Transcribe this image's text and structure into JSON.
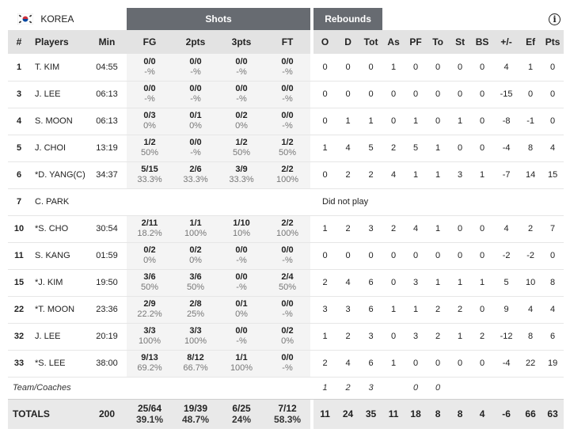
{
  "team": {
    "name": "KOREA"
  },
  "groups": {
    "shots": "Shots",
    "rebounds": "Rebounds"
  },
  "columns": {
    "num": "#",
    "players": "Players",
    "min": "Min",
    "fg": "FG",
    "p2": "2pts",
    "p3": "3pts",
    "ft": "FT",
    "o": "O",
    "d": "D",
    "tot": "Tot",
    "as": "As",
    "pf": "PF",
    "to": "To",
    "st": "St",
    "bs": "BS",
    "pm": "+/-",
    "ef": "Ef",
    "pts": "Pts"
  },
  "players": [
    {
      "num": "1",
      "name": "T. KIM",
      "min": "04:55",
      "fg": "0/0",
      "fgp": "-%",
      "p2": "0/0",
      "p2p": "-%",
      "p3": "0/0",
      "p3p": "-%",
      "ft": "0/0",
      "ftp": "-%",
      "o": "0",
      "d": "0",
      "tot": "0",
      "as": "1",
      "pf": "0",
      "to": "0",
      "st": "0",
      "bs": "0",
      "pm": "4",
      "ef": "1",
      "pts": "0"
    },
    {
      "num": "3",
      "name": "J. LEE",
      "min": "06:13",
      "fg": "0/0",
      "fgp": "-%",
      "p2": "0/0",
      "p2p": "-%",
      "p3": "0/0",
      "p3p": "-%",
      "ft": "0/0",
      "ftp": "-%",
      "o": "0",
      "d": "0",
      "tot": "0",
      "as": "0",
      "pf": "0",
      "to": "0",
      "st": "0",
      "bs": "0",
      "pm": "-15",
      "ef": "0",
      "pts": "0"
    },
    {
      "num": "4",
      "name": "S. MOON",
      "min": "06:13",
      "fg": "0/3",
      "fgp": "0%",
      "p2": "0/1",
      "p2p": "0%",
      "p3": "0/2",
      "p3p": "0%",
      "ft": "0/0",
      "ftp": "-%",
      "o": "0",
      "d": "1",
      "tot": "1",
      "as": "0",
      "pf": "1",
      "to": "0",
      "st": "1",
      "bs": "0",
      "pm": "-8",
      "ef": "-1",
      "pts": "0"
    },
    {
      "num": "5",
      "name": "J. CHOI",
      "min": "13:19",
      "fg": "1/2",
      "fgp": "50%",
      "p2": "0/0",
      "p2p": "-%",
      "p3": "1/2",
      "p3p": "50%",
      "ft": "1/2",
      "ftp": "50%",
      "o": "1",
      "d": "4",
      "tot": "5",
      "as": "2",
      "pf": "5",
      "to": "1",
      "st": "0",
      "bs": "0",
      "pm": "-4",
      "ef": "8",
      "pts": "4"
    },
    {
      "num": "6",
      "name": "*D. YANG(C)",
      "min": "34:37",
      "fg": "5/15",
      "fgp": "33.3%",
      "p2": "2/6",
      "p2p": "33.3%",
      "p3": "3/9",
      "p3p": "33.3%",
      "ft": "2/2",
      "ftp": "100%",
      "o": "0",
      "d": "2",
      "tot": "2",
      "as": "4",
      "pf": "1",
      "to": "1",
      "st": "3",
      "bs": "1",
      "pm": "-7",
      "ef": "14",
      "pts": "15"
    },
    {
      "num": "7",
      "name": "C. PARK",
      "dnp": "Did not play"
    },
    {
      "num": "10",
      "name": "*S. CHO",
      "min": "30:54",
      "fg": "2/11",
      "fgp": "18.2%",
      "p2": "1/1",
      "p2p": "100%",
      "p3": "1/10",
      "p3p": "10%",
      "ft": "2/2",
      "ftp": "100%",
      "o": "1",
      "d": "2",
      "tot": "3",
      "as": "2",
      "pf": "4",
      "to": "1",
      "st": "0",
      "bs": "0",
      "pm": "4",
      "ef": "2",
      "pts": "7"
    },
    {
      "num": "11",
      "name": "S. KANG",
      "min": "01:59",
      "fg": "0/2",
      "fgp": "0%",
      "p2": "0/2",
      "p2p": "0%",
      "p3": "0/0",
      "p3p": "-%",
      "ft": "0/0",
      "ftp": "-%",
      "o": "0",
      "d": "0",
      "tot": "0",
      "as": "0",
      "pf": "0",
      "to": "0",
      "st": "0",
      "bs": "0",
      "pm": "-2",
      "ef": "-2",
      "pts": "0"
    },
    {
      "num": "15",
      "name": "*J. KIM",
      "min": "19:50",
      "fg": "3/6",
      "fgp": "50%",
      "p2": "3/6",
      "p2p": "50%",
      "p3": "0/0",
      "p3p": "-%",
      "ft": "2/4",
      "ftp": "50%",
      "o": "2",
      "d": "4",
      "tot": "6",
      "as": "0",
      "pf": "3",
      "to": "1",
      "st": "1",
      "bs": "1",
      "pm": "5",
      "ef": "10",
      "pts": "8"
    },
    {
      "num": "22",
      "name": "*T. MOON",
      "min": "23:36",
      "fg": "2/9",
      "fgp": "22.2%",
      "p2": "2/8",
      "p2p": "25%",
      "p3": "0/1",
      "p3p": "0%",
      "ft": "0/0",
      "ftp": "-%",
      "o": "3",
      "d": "3",
      "tot": "6",
      "as": "1",
      "pf": "1",
      "to": "2",
      "st": "2",
      "bs": "0",
      "pm": "9",
      "ef": "4",
      "pts": "4"
    },
    {
      "num": "32",
      "name": "J. LEE",
      "min": "20:19",
      "fg": "3/3",
      "fgp": "100%",
      "p2": "3/3",
      "p2p": "100%",
      "p3": "0/0",
      "p3p": "-%",
      "ft": "0/2",
      "ftp": "0%",
      "o": "1",
      "d": "2",
      "tot": "3",
      "as": "0",
      "pf": "3",
      "to": "2",
      "st": "1",
      "bs": "2",
      "pm": "-12",
      "ef": "8",
      "pts": "6"
    },
    {
      "num": "33",
      "name": "*S. LEE",
      "min": "38:00",
      "fg": "9/13",
      "fgp": "69.2%",
      "p2": "8/12",
      "p2p": "66.7%",
      "p3": "1/1",
      "p3p": "100%",
      "ft": "0/0",
      "ftp": "-%",
      "o": "2",
      "d": "4",
      "tot": "6",
      "as": "1",
      "pf": "0",
      "to": "0",
      "st": "0",
      "bs": "0",
      "pm": "-4",
      "ef": "22",
      "pts": "19"
    }
  ],
  "team_row": {
    "label": "Team/Coaches",
    "o": "1",
    "d": "2",
    "tot": "3",
    "pf": "0",
    "to": "0"
  },
  "totals": {
    "label": "TOTALS",
    "min": "200",
    "fg": "25/64",
    "fgp": "39.1%",
    "p2": "19/39",
    "p2p": "48.7%",
    "p3": "6/25",
    "p3p": "24%",
    "ft": "7/12",
    "ftp": "58.3%",
    "o": "11",
    "d": "24",
    "tot": "35",
    "as": "11",
    "pf": "18",
    "to": "8",
    "st": "8",
    "bs": "4",
    "pm": "-6",
    "ef": "66",
    "pts": "63"
  },
  "colors": {
    "group_header_bg": "#676b71",
    "column_header_bg": "#e3e3e3",
    "flag_red": "#cd2e3a",
    "flag_blue": "#0047a0"
  },
  "icons": {
    "info": "info-icon",
    "flag": "korea-flag-icon"
  }
}
